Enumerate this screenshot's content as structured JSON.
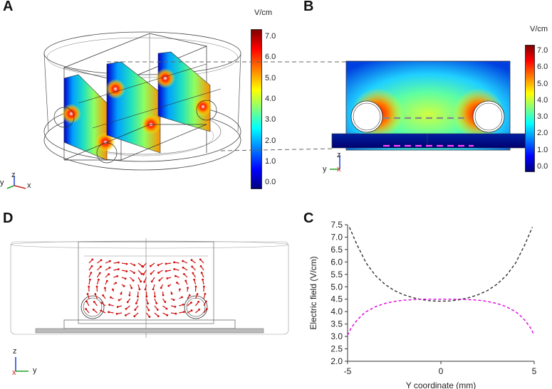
{
  "panels": {
    "a": {
      "letter": "A",
      "unit": "V/cm",
      "ticks": [
        "7.0",
        "6.0",
        "5.0",
        "4.0",
        "3.0",
        "2.0",
        "1.0",
        "0.0"
      ],
      "triad": {
        "y": "y",
        "z": "z",
        "x": "x"
      }
    },
    "b": {
      "letter": "B",
      "unit": "V/cm",
      "ticks": [
        "7.0",
        "6.0",
        "5.0",
        "4.0",
        "3.0",
        "2.0",
        "1.0",
        "0.0"
      ],
      "triad": {
        "z": "z",
        "y": "y",
        "x": "x"
      }
    },
    "d": {
      "letter": "D",
      "triad": {
        "z": "z",
        "y": "y",
        "x": "x"
      }
    },
    "c": {
      "letter": "C"
    }
  },
  "colormap": [
    "#00007f",
    "#0000ff",
    "#007fff",
    "#00ffff",
    "#7fff7f",
    "#ffff00",
    "#ff7f00",
    "#ff0000",
    "#7f0000"
  ],
  "chart_data": {
    "type": "line",
    "title": "",
    "xlabel": "Y coordinate (mm)",
    "ylabel": "Electric field (V/cm)",
    "xlim": [
      -5,
      5
    ],
    "ylim": [
      2.0,
      7.5
    ],
    "xticks": [
      "-5",
      "0",
      "5"
    ],
    "yticks": [
      "2.0",
      "2.5",
      "3.0",
      "3.5",
      "4.0",
      "4.5",
      "5.0",
      "5.5",
      "6.0",
      "6.5",
      "7.0",
      "7.5"
    ],
    "series": [
      {
        "color": "#333333",
        "x": [
          -4.9,
          -4.5,
          -4.0,
          -3.5,
          -3.0,
          -2.5,
          -2.0,
          -1.5,
          -1.0,
          -0.5,
          0,
          0.5,
          1.0,
          1.5,
          2.0,
          2.5,
          3.0,
          3.5,
          4.0,
          4.5,
          4.9
        ],
        "y": [
          7.4,
          6.7,
          5.95,
          5.45,
          5.1,
          4.85,
          4.68,
          4.56,
          4.48,
          4.43,
          4.42,
          4.43,
          4.48,
          4.56,
          4.68,
          4.85,
          5.1,
          5.45,
          5.95,
          6.7,
          7.4
        ]
      },
      {
        "color": "#dd00dd",
        "x": [
          -5.0,
          -4.8,
          -4.5,
          -4.2,
          -4.0,
          -3.5,
          -3.0,
          -2.5,
          -2.0,
          -1.5,
          -1.0,
          0,
          1.0,
          1.5,
          2.0,
          2.5,
          3.0,
          3.5,
          4.0,
          4.2,
          4.5,
          4.8,
          5.0
        ],
        "y": [
          3.05,
          3.35,
          3.65,
          3.88,
          4.0,
          4.2,
          4.33,
          4.41,
          4.46,
          4.48,
          4.5,
          4.5,
          4.5,
          4.48,
          4.46,
          4.41,
          4.33,
          4.2,
          4.0,
          3.88,
          3.65,
          3.35,
          3.05
        ]
      }
    ]
  }
}
